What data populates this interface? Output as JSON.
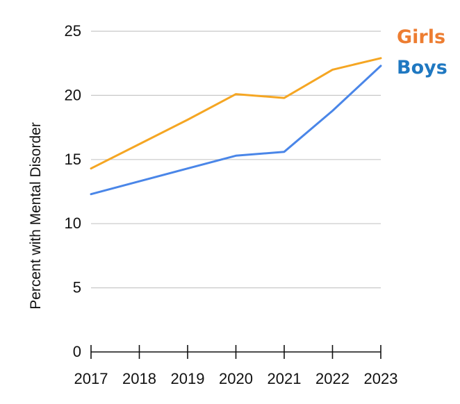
{
  "chart_data": {
    "type": "line",
    "x": [
      "2017",
      "2018",
      "2019",
      "2020",
      "2021",
      "2022",
      "2023"
    ],
    "series": [
      {
        "name": "Girls",
        "values": [
          14.3,
          16.2,
          18.1,
          20.1,
          19.8,
          22.0,
          22.9
        ],
        "color": "#f5a623"
      },
      {
        "name": "Boys",
        "values": [
          12.3,
          13.3,
          14.3,
          15.3,
          15.6,
          18.8,
          22.3
        ],
        "color": "#4a86e8"
      }
    ],
    "legend_label_colors": {
      "Girls": "#ed7d31",
      "Boys": "#1f78c1"
    },
    "ylabel": "Percent with Mental Disorder",
    "xlabel": "",
    "ylim": [
      0,
      25
    ],
    "yticks": [
      0,
      5,
      10,
      15,
      20,
      25
    ],
    "grid": true,
    "legend_placement": "right, at line ends"
  }
}
